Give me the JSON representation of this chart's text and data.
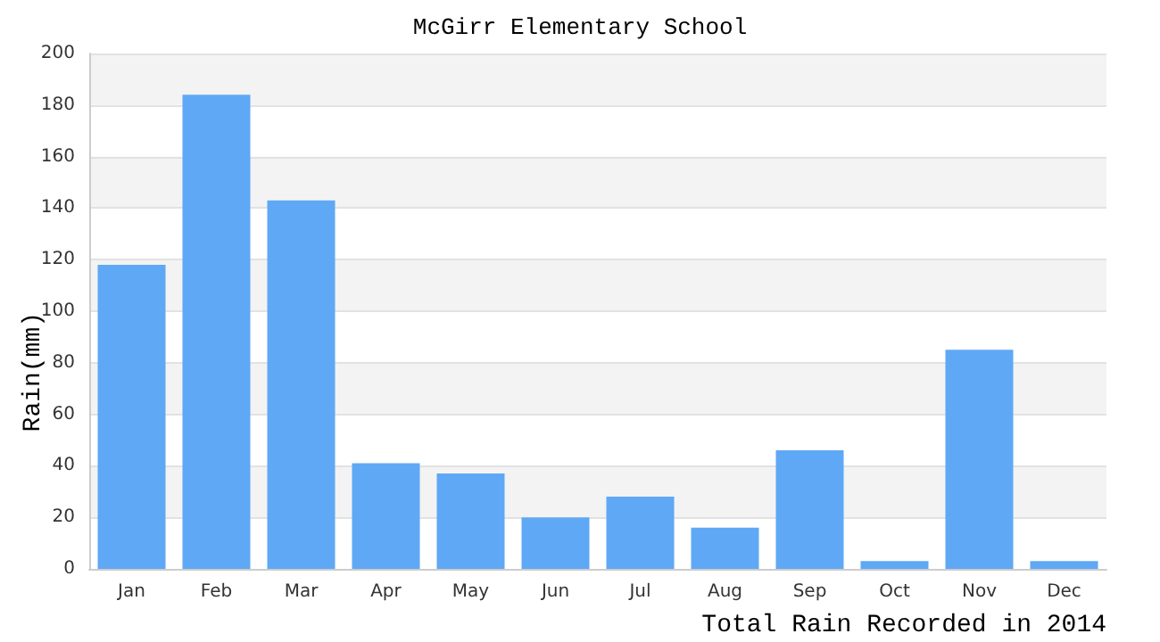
{
  "chart_data": {
    "type": "bar",
    "title": "McGirr Elementary School",
    "xlabel": "Total Rain Recorded in 2014",
    "ylabel": "Rain(mm)",
    "categories": [
      "Jan",
      "Feb",
      "Mar",
      "Apr",
      "May",
      "Jun",
      "Jul",
      "Aug",
      "Sep",
      "Oct",
      "Nov",
      "Dec"
    ],
    "values": [
      118,
      184,
      143,
      41,
      37,
      20,
      28,
      16,
      46,
      3,
      85,
      3
    ],
    "color": "#5fa8f5",
    "ylim": [
      0,
      200
    ],
    "yticks": [
      0,
      20,
      40,
      60,
      80,
      100,
      120,
      140,
      160,
      180,
      200
    ],
    "grid": "y"
  }
}
